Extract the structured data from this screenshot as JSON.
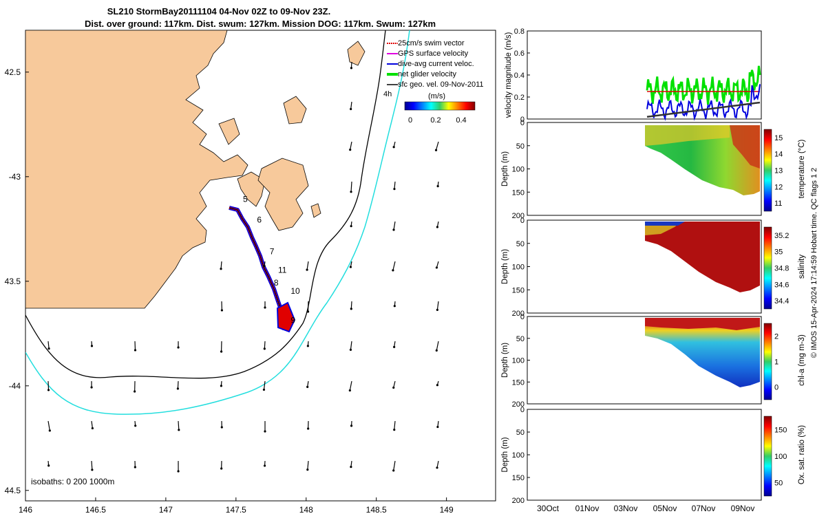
{
  "title_line1": "SL210 StormBay20111104 04-Nov 02Z to 09-Nov 23Z.",
  "title_line2": "Dist. over ground: 117km. Dist. swum: 127km. Mission DOG: 117km. Swum: 127km",
  "credit": "© IMOS 15-Apr-2024 17:14:59 Hobart time. QC flags 1  2",
  "colors": {
    "land": "#f7c99b",
    "track": "#e00000",
    "dive_avg": "#0000dd",
    "net_glider": "#00e000",
    "isobath_200": "#000000",
    "isobath_1000": "#22dede",
    "vector": "#000000"
  },
  "chart_data": [
    {
      "type": "map",
      "xlim": [
        146,
        149.35
      ],
      "ylim": [
        -44.55,
        -42.3
      ],
      "xticks": [
        146,
        146.5,
        147,
        147.5,
        148,
        148.5,
        149
      ],
      "xtick_labels": [
        "146",
        "146.5",
        "147",
        "147.5",
        "148",
        "148.5",
        "149"
      ],
      "yticks": [
        -42.5,
        -43,
        -43.5,
        -44,
        -44.5
      ],
      "ytick_labels": [
        "42.5",
        "-43",
        "43.5",
        "-44",
        "44.5"
      ],
      "legend": [
        "25cm/s swim vector",
        "GPS surface velocity",
        "dive-avg current veloc.",
        "net glider velocity",
        "sfc geo. vel. 09-Nov-2011"
      ],
      "legend_extra": "4h",
      "colorbar_title": "(m/s)",
      "colorbar_ticks": [
        "0",
        "0.2",
        "0.4"
      ],
      "isobath_note": "isobaths: 0   200  1000m",
      "track_day_labels": [
        {
          "label": "5",
          "lon": 147.55,
          "lat": -43.12
        },
        {
          "label": "6",
          "lon": 147.65,
          "lat": -43.22
        },
        {
          "label": "7",
          "lon": 147.74,
          "lat": -43.37
        },
        {
          "label": "11",
          "lon": 147.8,
          "lat": -43.46
        },
        {
          "label": "8",
          "lon": 147.77,
          "lat": -43.52
        },
        {
          "label": "10",
          "lon": 147.89,
          "lat": -43.56
        },
        {
          "label": "9",
          "lon": 147.89,
          "lat": -43.7
        }
      ]
    },
    {
      "type": "line",
      "ylabel": "velocity magnitude (m/s)",
      "ylim": [
        0,
        0.8
      ],
      "yticks": [
        0,
        0.2,
        0.4,
        0.6,
        0.8
      ],
      "xlim_days": [
        0,
        7
      ],
      "series_note": "green = net glider velocity, blue = dive-avg current, black = sfc geo. vel, red = 25cm/s swim"
    },
    {
      "type": "heatmap",
      "ylabel": "Depth (m)",
      "cbar_label": "temperature (°C)",
      "cbar_ticks": [
        "11",
        "12",
        "13",
        "14",
        "15"
      ],
      "yticks": [
        "0",
        "50",
        "100",
        "150",
        "200"
      ]
    },
    {
      "type": "heatmap",
      "ylabel": "Depth (m)",
      "cbar_label": "salinity",
      "cbar_ticks": [
        "34.4",
        "34.6",
        "34.8",
        "35",
        "35.2"
      ],
      "yticks": [
        "0",
        "50",
        "100",
        "150",
        "200"
      ]
    },
    {
      "type": "heatmap",
      "ylabel": "Depth (m)",
      "cbar_label": "chl-a (mg m-3)",
      "cbar_ticks": [
        "0",
        "1",
        "2"
      ],
      "yticks": [
        "0",
        "50",
        "100",
        "150",
        "200"
      ]
    },
    {
      "type": "heatmap",
      "ylabel": "Depth (m)",
      "cbar_label": "Ox. sat. ratio (%)",
      "cbar_ticks": [
        "50",
        "100",
        "150"
      ],
      "yticks": [
        "0",
        "50",
        "100",
        "150",
        "200"
      ],
      "xtick_labels": [
        "30Oct",
        "01Nov",
        "03Nov",
        "05Nov",
        "07Nov",
        "09Nov"
      ]
    }
  ]
}
